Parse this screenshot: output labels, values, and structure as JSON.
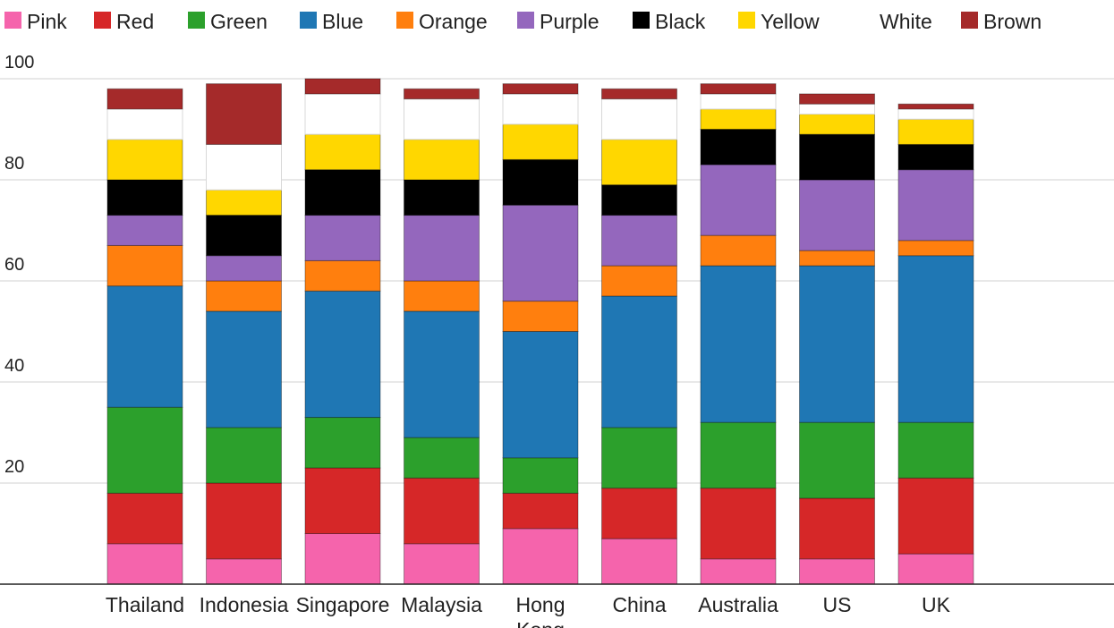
{
  "chart_data": {
    "type": "bar",
    "stacked": true,
    "title": "",
    "xlabel": "",
    "ylabel": "",
    "ylim": [
      0,
      100
    ],
    "yticks": [
      20,
      40,
      60,
      80,
      100
    ],
    "grid": true,
    "legend_position": "top",
    "categories": [
      "Thailand",
      "Indonesia",
      "Singapore",
      "Malaysia",
      "Hong Kong",
      "China",
      "Australia",
      "US",
      "UK"
    ],
    "series": [
      {
        "name": "Pink",
        "color": "#f564ac",
        "values": [
          8,
          5,
          10,
          8,
          11,
          9,
          5,
          5,
          6
        ]
      },
      {
        "name": "Red",
        "color": "#d62728",
        "values": [
          10,
          15,
          13,
          13,
          7,
          10,
          14,
          12,
          15
        ]
      },
      {
        "name": "Green",
        "color": "#2ca02c",
        "values": [
          17,
          11,
          10,
          8,
          7,
          12,
          13,
          15,
          11
        ]
      },
      {
        "name": "Blue",
        "color": "#1f77b4",
        "values": [
          24,
          23,
          25,
          25,
          25,
          26,
          31,
          31,
          33
        ]
      },
      {
        "name": "Orange",
        "color": "#ff7f0e",
        "values": [
          8,
          6,
          6,
          6,
          6,
          6,
          6,
          3,
          3
        ]
      },
      {
        "name": "Purple",
        "color": "#9467bd",
        "values": [
          6,
          5,
          9,
          13,
          19,
          10,
          14,
          14,
          14
        ]
      },
      {
        "name": "Black",
        "color": "#000000",
        "values": [
          7,
          8,
          9,
          7,
          9,
          6,
          7,
          9,
          5
        ]
      },
      {
        "name": "Yellow",
        "color": "#ffd700",
        "values": [
          8,
          5,
          7,
          8,
          7,
          9,
          4,
          4,
          5
        ]
      },
      {
        "name": "White",
        "color": "#ffffff",
        "values": [
          6,
          9,
          8,
          8,
          6,
          8,
          3,
          2,
          2
        ]
      },
      {
        "name": "Brown",
        "color": "#a52a2a",
        "values": [
          4,
          12,
          3,
          2,
          2,
          2,
          2,
          2,
          1
        ]
      }
    ]
  }
}
